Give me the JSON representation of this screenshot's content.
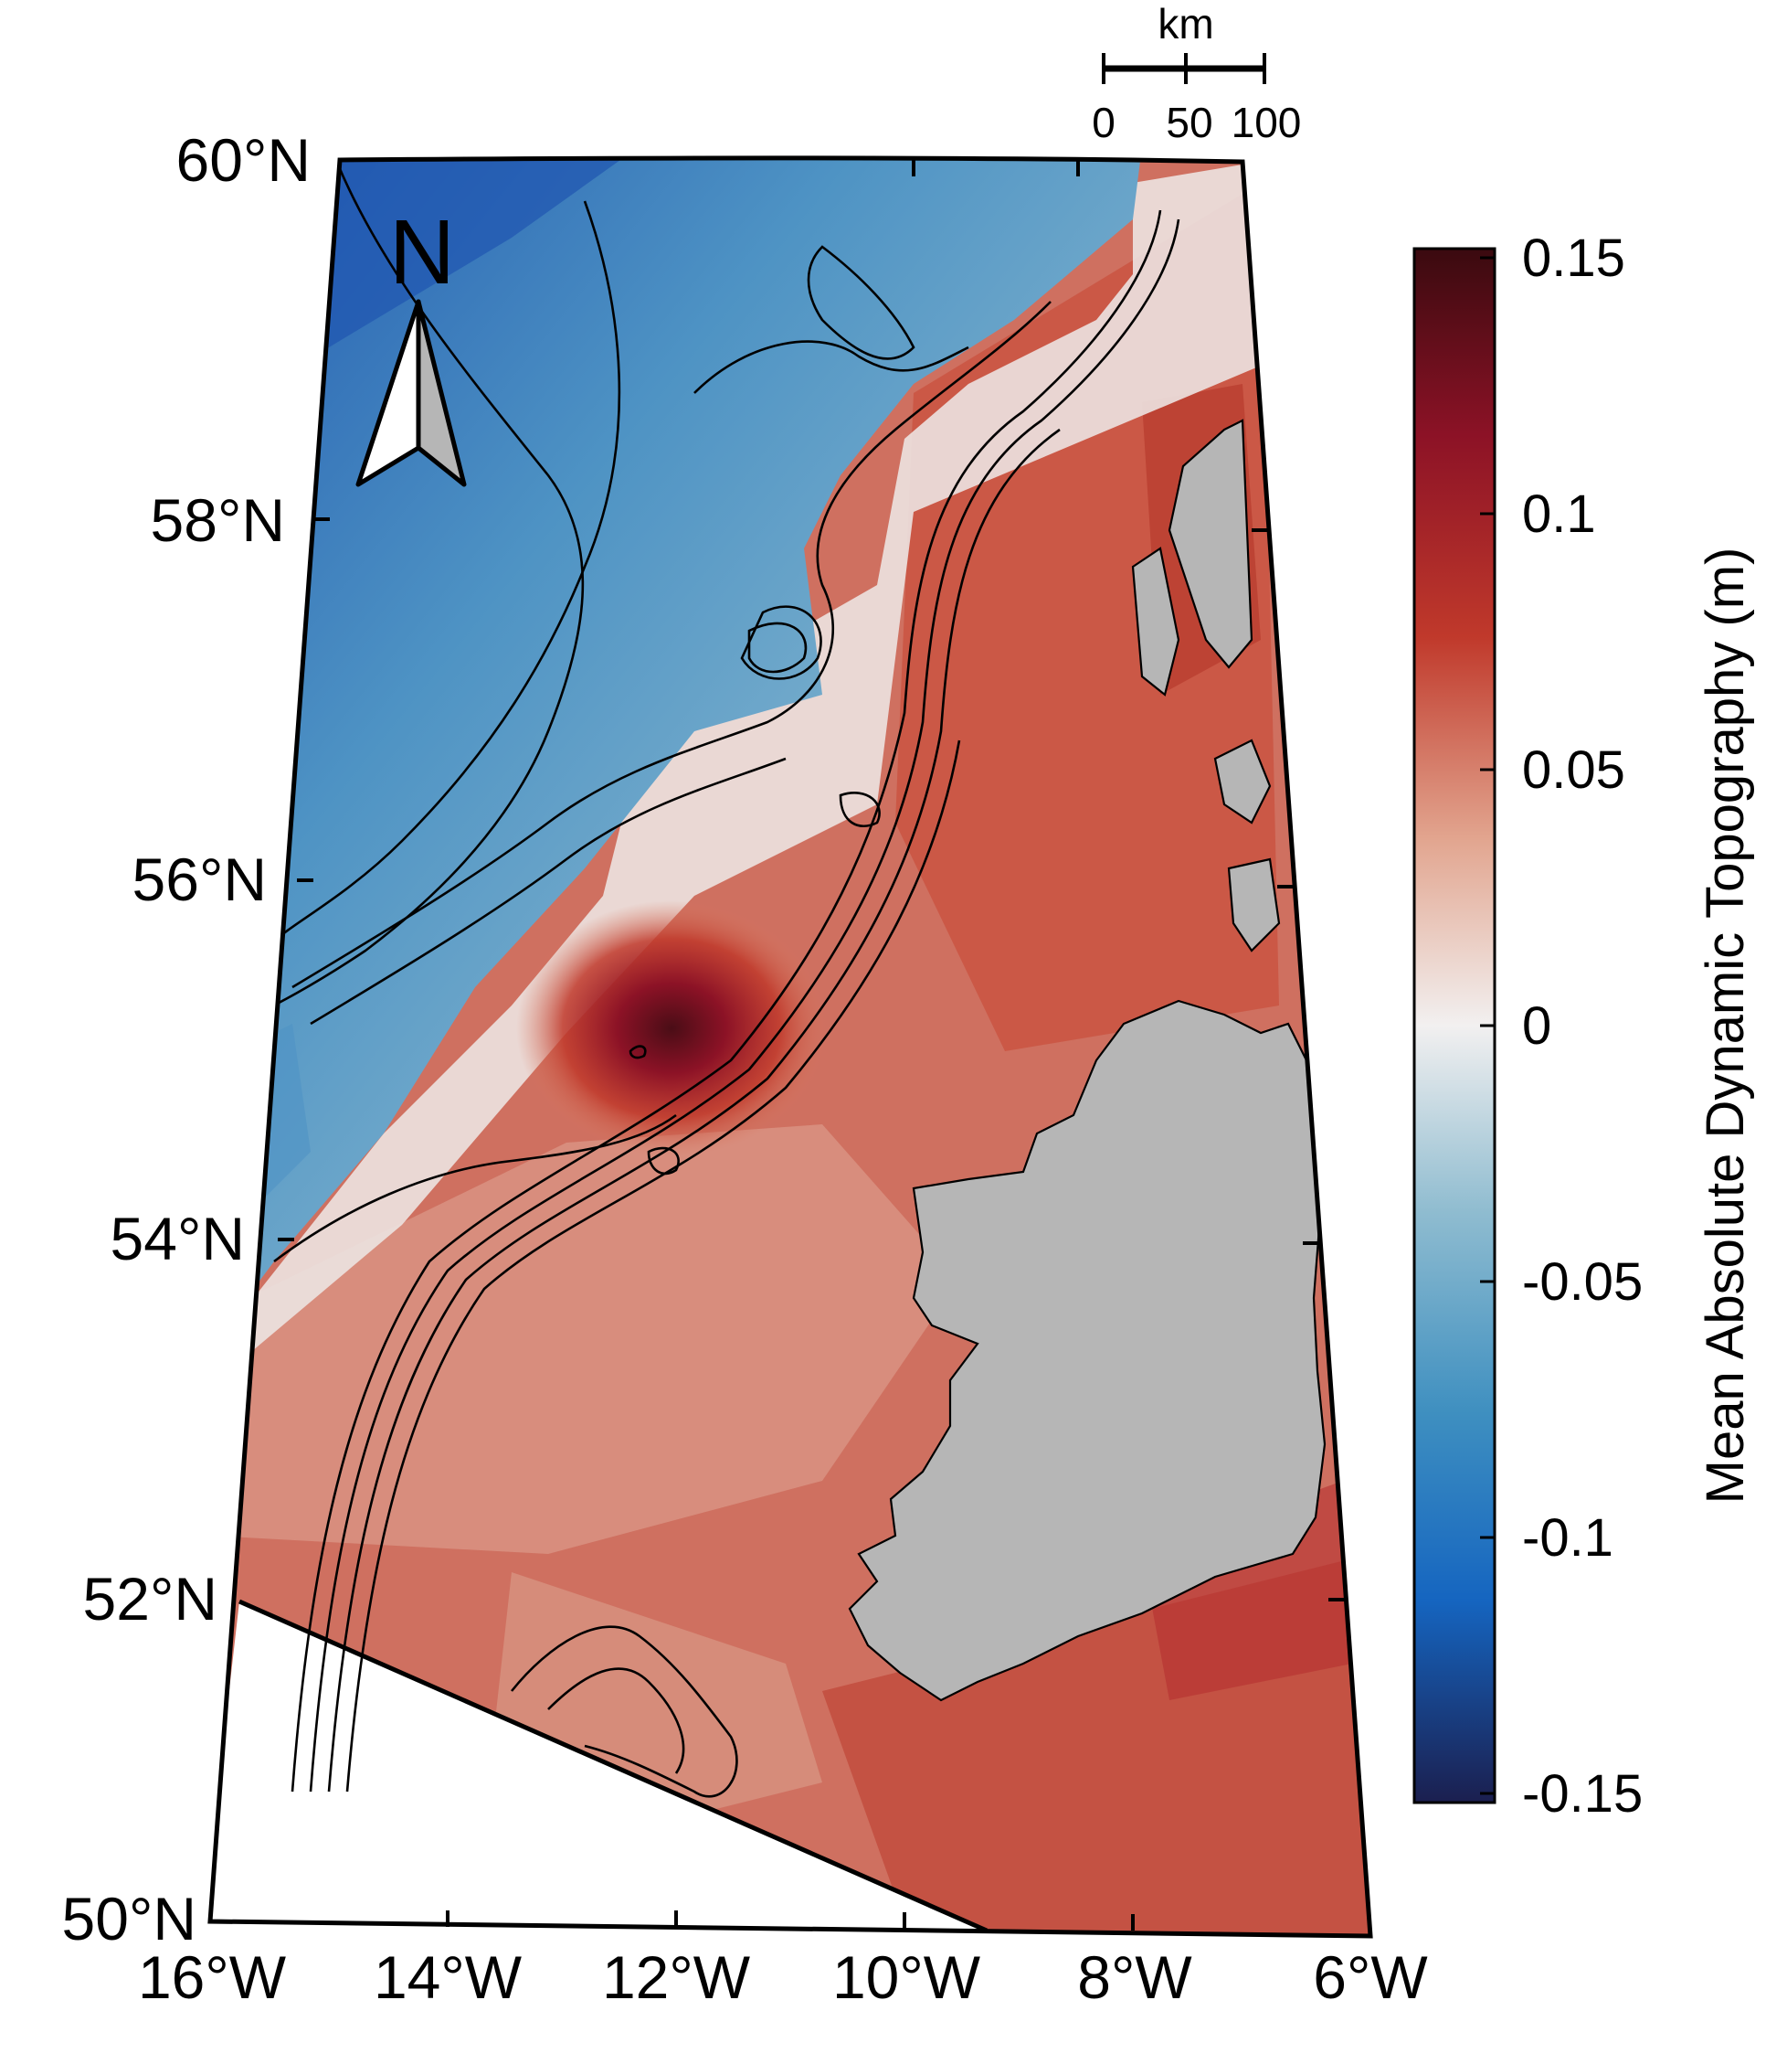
{
  "map": {
    "latitude_labels": [
      "60°N",
      "58°N",
      "56°N",
      "54°N",
      "52°N",
      "50°N"
    ],
    "longitude_labels": [
      "16°W",
      "14°W",
      "12°W",
      "10°W",
      "8°W",
      "6°W"
    ],
    "north_arrow": {
      "label": "N",
      "icon": "north-arrow-icon"
    },
    "scale_bar": {
      "unit": "km",
      "labels": [
        "0",
        "50",
        "100"
      ]
    },
    "colorbar": {
      "title": "Mean Absolute Dynamic Topography (m)",
      "tick_labels": [
        "0.15",
        "0.1",
        "0.05",
        "0",
        "-0.05",
        "-0.1",
        "-0.15"
      ],
      "range": [
        -0.15,
        0.15
      ],
      "colormap": "diverging blue–white–red",
      "colors": {
        "min": "#1b1f4f",
        "blue": "#1565c0",
        "light_blue": "#8fbcd0",
        "zero": "#f2f0f0",
        "light_red": "#e2a58f",
        "red": "#c0392b",
        "max": "#3a0a0f"
      }
    },
    "land_color": "#b6b6b6",
    "contour_color": "#000000"
  }
}
